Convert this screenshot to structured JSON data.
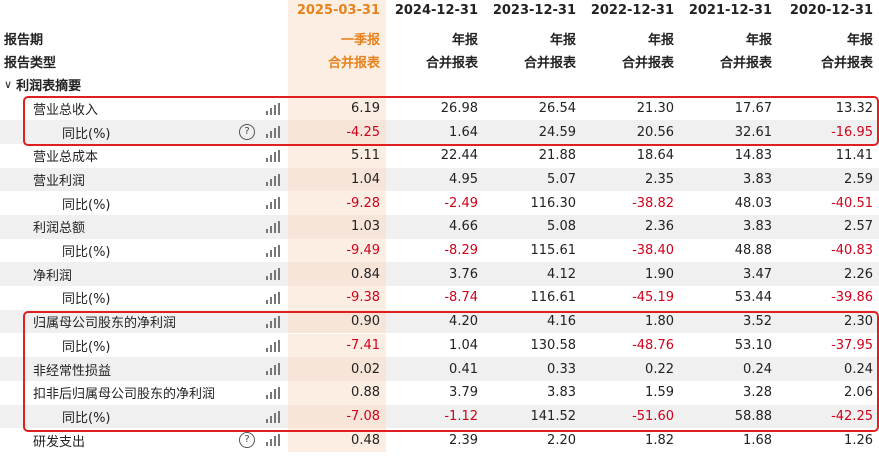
{
  "header": {
    "period_label": "报告期",
    "type_label": "报告类型",
    "periods": [
      "2025-03-31",
      "2024-12-31",
      "2023-12-31",
      "2022-12-31",
      "2021-12-31",
      "2020-12-31"
    ],
    "report_kinds": [
      "一季报",
      "年报",
      "年报",
      "年报",
      "年报",
      "年报"
    ],
    "report_types": [
      "合并报表",
      "合并报表",
      "合并报表",
      "合并报表",
      "合并报表",
      "合并报表"
    ]
  },
  "section": {
    "toggle": "∨",
    "title": "利润表摘要"
  },
  "rows": [
    {
      "label": "营业总收入",
      "indent": 1,
      "help": false,
      "values": [
        "6.19",
        "26.98",
        "26.54",
        "21.30",
        "17.67",
        "13.32"
      ]
    },
    {
      "label": "同比(%)",
      "indent": 2,
      "help": true,
      "values": [
        "-4.25",
        "1.64",
        "24.59",
        "20.56",
        "32.61",
        "-16.95"
      ]
    },
    {
      "label": "营业总成本",
      "indent": 1,
      "help": false,
      "values": [
        "5.11",
        "22.44",
        "21.88",
        "18.64",
        "14.83",
        "11.41"
      ]
    },
    {
      "label": "营业利润",
      "indent": 1,
      "help": false,
      "values": [
        "1.04",
        "4.95",
        "5.07",
        "2.35",
        "3.83",
        "2.59"
      ]
    },
    {
      "label": "同比(%)",
      "indent": 2,
      "help": false,
      "values": [
        "-9.28",
        "-2.49",
        "116.30",
        "-38.82",
        "48.03",
        "-40.51"
      ]
    },
    {
      "label": "利润总额",
      "indent": 1,
      "help": false,
      "values": [
        "1.03",
        "4.66",
        "5.08",
        "2.36",
        "3.83",
        "2.57"
      ]
    },
    {
      "label": "同比(%)",
      "indent": 2,
      "help": false,
      "values": [
        "-9.49",
        "-8.29",
        "115.61",
        "-38.40",
        "48.88",
        "-40.83"
      ]
    },
    {
      "label": "净利润",
      "indent": 1,
      "help": false,
      "values": [
        "0.84",
        "3.76",
        "4.12",
        "1.90",
        "3.47",
        "2.26"
      ]
    },
    {
      "label": "同比(%)",
      "indent": 2,
      "help": false,
      "values": [
        "-9.38",
        "-8.74",
        "116.61",
        "-45.19",
        "53.44",
        "-39.86"
      ]
    },
    {
      "label": "归属母公司股东的净利润",
      "indent": 1,
      "help": false,
      "values": [
        "0.90",
        "4.20",
        "4.16",
        "1.80",
        "3.52",
        "2.30"
      ]
    },
    {
      "label": "同比(%)",
      "indent": 2,
      "help": false,
      "values": [
        "-7.41",
        "1.04",
        "130.58",
        "-48.76",
        "53.10",
        "-37.95"
      ]
    },
    {
      "label": "非经常性损益",
      "indent": 1,
      "help": false,
      "values": [
        "0.02",
        "0.41",
        "0.33",
        "0.22",
        "0.24",
        "0.24"
      ]
    },
    {
      "label": "扣非后归属母公司股东的净利润",
      "indent": 1,
      "help": false,
      "values": [
        "0.88",
        "3.79",
        "3.83",
        "1.59",
        "3.28",
        "2.06"
      ]
    },
    {
      "label": "同比(%)",
      "indent": 2,
      "help": false,
      "values": [
        "-7.08",
        "-1.12",
        "141.52",
        "-51.60",
        "58.88",
        "-42.25"
      ]
    },
    {
      "label": "研发支出",
      "indent": 1,
      "help": true,
      "values": [
        "0.48",
        "2.39",
        "2.20",
        "1.82",
        "1.68",
        "1.26"
      ]
    }
  ],
  "help_glyph": "?",
  "colors": {
    "highlight_period": "#e8821c",
    "negative": "#d0021b",
    "box": "#e02020"
  }
}
